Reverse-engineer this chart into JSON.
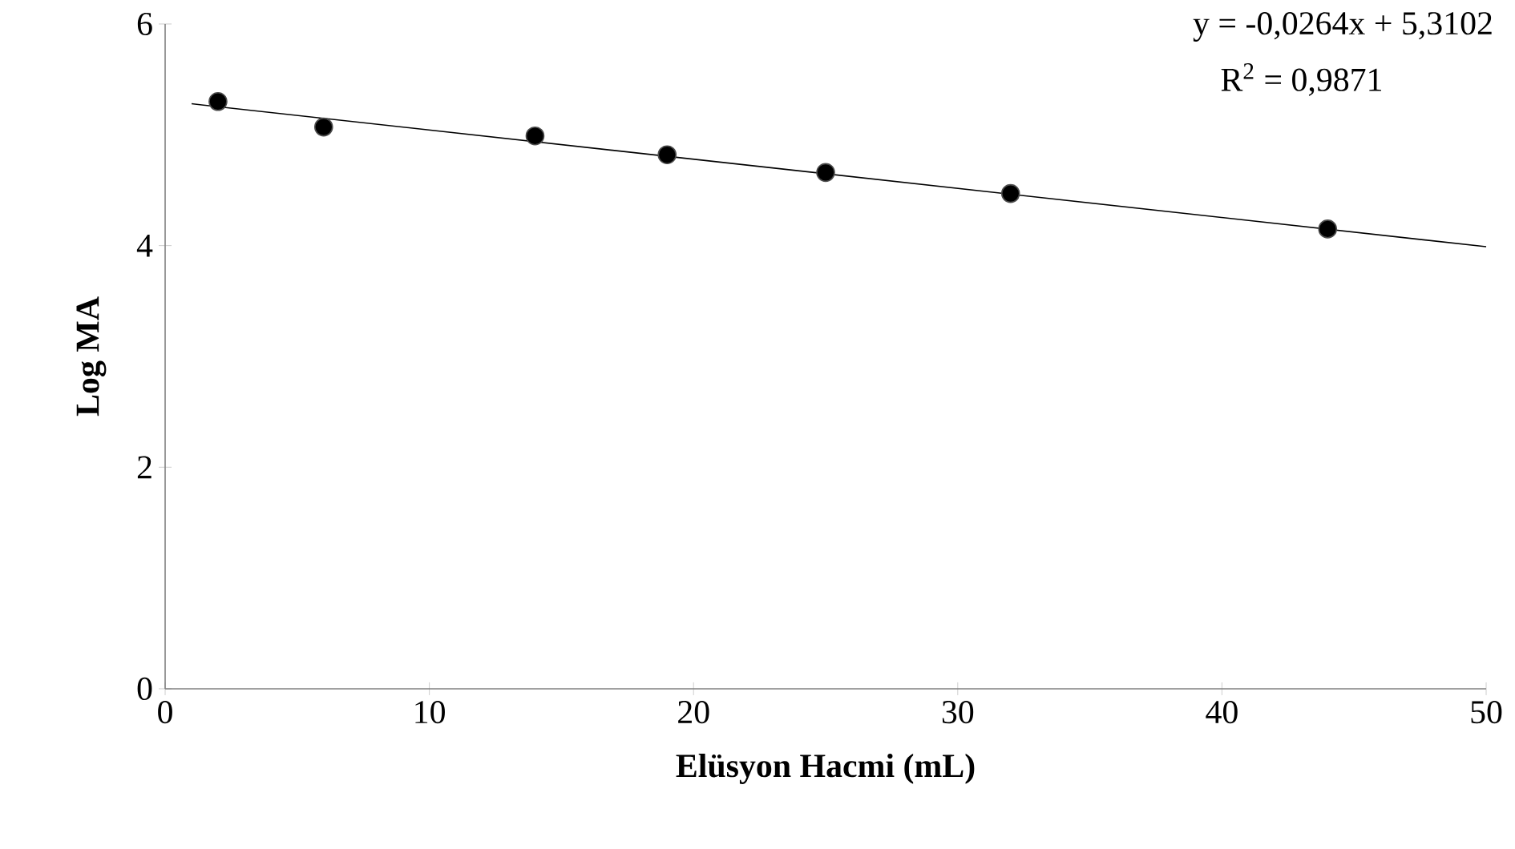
{
  "chart_data": {
    "type": "scatter",
    "xlabel": "Elüsyon Hacmi (mL)",
    "ylabel": "Log MA",
    "xlim": [
      0,
      50
    ],
    "xticks": [
      0,
      10,
      20,
      30,
      40,
      50
    ],
    "ylim": [
      0,
      6
    ],
    "yticks": [
      0,
      2,
      4,
      6
    ],
    "series": [
      {
        "color": "#000000",
        "marker": "circle",
        "x": [
          2,
          6,
          14,
          19,
          25,
          32,
          44
        ],
        "values": [
          5.3,
          5.07,
          4.99,
          4.82,
          4.66,
          4.47,
          4.15
        ]
      },
      {
        "type": "line",
        "color": "#000000",
        "marker": "none",
        "line_style": "solid",
        "x": [
          1,
          50
        ],
        "values": [
          5.28,
          3.99
        ]
      }
    ],
    "annotations": [
      "y = -0,0264x + 5,3102",
      "R$^{2}$ = 0,9871"
    ],
    "grid": false
  }
}
